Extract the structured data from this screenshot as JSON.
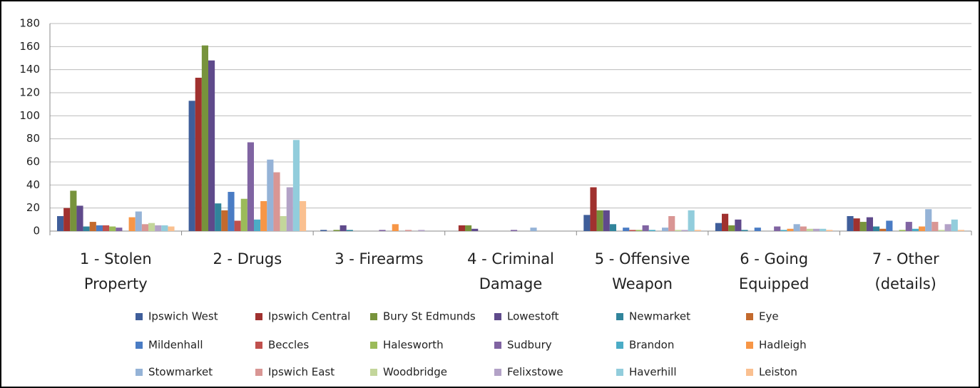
{
  "chart_data": {
    "type": "bar",
    "categories": [
      "1 - Stolen Property",
      "2 - Drugs",
      "3 - Firearms",
      "4 - Criminal Damage",
      "5 - Offensive Weapon",
      "6 - Going Equipped",
      "7 - Other (details)"
    ],
    "series": [
      {
        "name": "Ipswich West",
        "color": "#3F5E9A",
        "values": [
          13,
          113,
          1,
          0,
          14,
          7,
          13
        ]
      },
      {
        "name": "Ipswich Central",
        "color": "#A0312F",
        "values": [
          20,
          133,
          0,
          5,
          38,
          15,
          11
        ]
      },
      {
        "name": "Bury St Edmunds",
        "color": "#77933C",
        "values": [
          35,
          161,
          1,
          5,
          18,
          5,
          8
        ]
      },
      {
        "name": "Lowestoft",
        "color": "#5F4A8B",
        "values": [
          22,
          148,
          5,
          2,
          18,
          10,
          12
        ]
      },
      {
        "name": "Newmarket",
        "color": "#31849B",
        "values": [
          4,
          24,
          1,
          0,
          6,
          1,
          4
        ]
      },
      {
        "name": "Eye",
        "color": "#C36A2D",
        "values": [
          8,
          18,
          0,
          0,
          0,
          0,
          2
        ]
      },
      {
        "name": "Mildenhall",
        "color": "#4A7CC4",
        "values": [
          5,
          34,
          0,
          0,
          3,
          3,
          9
        ]
      },
      {
        "name": "Beccles",
        "color": "#C0504D",
        "values": [
          5,
          9,
          0,
          0,
          1,
          0,
          0
        ]
      },
      {
        "name": "Halesworth",
        "color": "#9BBB59",
        "values": [
          4,
          28,
          0,
          0,
          1,
          0,
          1
        ]
      },
      {
        "name": "Sudbury",
        "color": "#8064A2",
        "values": [
          3,
          77,
          1,
          1,
          5,
          4,
          8
        ]
      },
      {
        "name": "Brandon",
        "color": "#4BACC6",
        "values": [
          0,
          10,
          0,
          0,
          1,
          1,
          2
        ]
      },
      {
        "name": "Hadleigh",
        "color": "#F79646",
        "values": [
          12,
          26,
          6,
          0,
          0,
          2,
          4
        ]
      },
      {
        "name": "Stowmarket",
        "color": "#95B3D7",
        "values": [
          17,
          62,
          0,
          3,
          3,
          6,
          19
        ]
      },
      {
        "name": "Ipswich East",
        "color": "#D99694",
        "values": [
          6,
          51,
          1,
          0,
          13,
          4,
          8
        ]
      },
      {
        "name": "Woodbridge",
        "color": "#C3D69B",
        "values": [
          7,
          13,
          0,
          0,
          1,
          2,
          1
        ]
      },
      {
        "name": "Felixstowe",
        "color": "#B3A2C7",
        "values": [
          5,
          38,
          1,
          0,
          1,
          2,
          6
        ]
      },
      {
        "name": "Haverhill",
        "color": "#92CDDC",
        "values": [
          5,
          79,
          0,
          0,
          18,
          2,
          10
        ]
      },
      {
        "name": "Leiston",
        "color": "#FAC090",
        "values": [
          4,
          26,
          0,
          0,
          1,
          1,
          1
        ]
      }
    ],
    "ylim": [
      0,
      180
    ],
    "yticks": [
      0,
      20,
      40,
      60,
      80,
      100,
      120,
      140,
      160,
      180
    ],
    "grid": true
  }
}
